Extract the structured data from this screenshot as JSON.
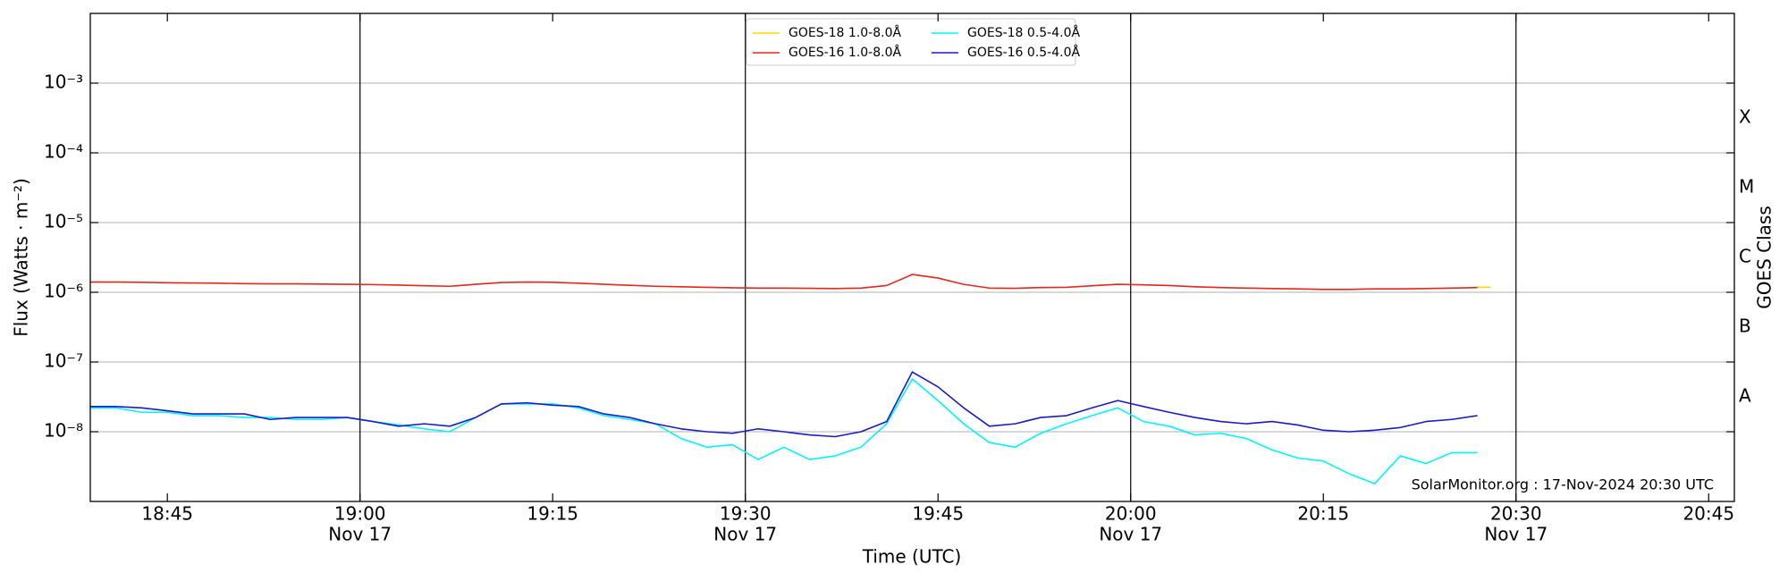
{
  "chart_data": {
    "type": "line",
    "ylabel": "Flux (Watts · m⁻²)",
    "xlabel": "Time (UTC)",
    "y2label": "GOES Class",
    "annotation": "SolarMonitor.org : 17-Nov-2024 20:30 UTC",
    "log_scale": true,
    "grid": true,
    "legend": "upper center",
    "xlim": [
      "18:39",
      "20:47"
    ],
    "xticks": [
      "18:45",
      "19:00",
      "19:15",
      "19:30",
      "19:45",
      "20:00",
      "20:15",
      "20:30",
      "20:45"
    ],
    "xtick_sublabels": [
      null,
      "Nov 17",
      null,
      "Nov 17",
      null,
      "Nov 17",
      null,
      "Nov 17",
      null
    ],
    "ylim": [
      1e-09,
      0.01
    ],
    "yticks": [
      {
        "value": 1e-08,
        "label": "10⁻⁸"
      },
      {
        "value": 1e-07,
        "label": "10⁻⁷"
      },
      {
        "value": 1e-06,
        "label": "10⁻⁶"
      },
      {
        "value": 1e-05,
        "label": "10⁻⁵"
      },
      {
        "value": 0.0001,
        "label": "10⁻⁴"
      },
      {
        "value": 0.001,
        "label": "10⁻³"
      }
    ],
    "y2lim": [
      1e-09,
      0.01
    ],
    "y2ticks": [
      {
        "value": 3.16e-08,
        "label": "A"
      },
      {
        "value": 3.16e-07,
        "label": "B"
      },
      {
        "value": 3.16e-06,
        "label": "C"
      },
      {
        "value": 3.16e-05,
        "label": "M"
      },
      {
        "value": 0.000316,
        "label": "X"
      }
    ],
    "x": [
      "18:39",
      "18:41",
      "18:43",
      "18:45",
      "18:47",
      "18:49",
      "18:51",
      "18:53",
      "18:55",
      "18:57",
      "18:59",
      "19:01",
      "19:03",
      "19:05",
      "19:07",
      "19:09",
      "19:11",
      "19:13",
      "19:15",
      "19:17",
      "19:19",
      "19:21",
      "19:23",
      "19:25",
      "19:27",
      "19:29",
      "19:31",
      "19:33",
      "19:35",
      "19:37",
      "19:39",
      "19:41",
      "19:43",
      "19:45",
      "19:47",
      "19:49",
      "19:51",
      "19:53",
      "19:55",
      "19:57",
      "19:59",
      "20:01",
      "20:03",
      "20:05",
      "20:07",
      "20:09",
      "20:11",
      "20:13",
      "20:15",
      "20:17",
      "20:19",
      "20:21",
      "20:23",
      "20:25",
      "20:27"
    ],
    "series": [
      {
        "name": "GOES-18 1.0-8.0Å",
        "color": "#ffd700",
        "x": [
          "20:27",
          "20:28"
        ],
        "values": [
          1.18e-06,
          1.18e-06
        ]
      },
      {
        "name": "GOES-16 1.0-8.0Å",
        "color": "#e8261a",
        "values": [
          1.4e-06,
          1.4e-06,
          1.39e-06,
          1.37e-06,
          1.36e-06,
          1.35e-06,
          1.33e-06,
          1.32e-06,
          1.32e-06,
          1.31e-06,
          1.3e-06,
          1.29e-06,
          1.27e-06,
          1.24e-06,
          1.22e-06,
          1.3e-06,
          1.38e-06,
          1.4e-06,
          1.39e-06,
          1.35e-06,
          1.3e-06,
          1.26e-06,
          1.22e-06,
          1.2e-06,
          1.18e-06,
          1.16e-06,
          1.15e-06,
          1.15e-06,
          1.14e-06,
          1.13e-06,
          1.15e-06,
          1.25e-06,
          1.8e-06,
          1.6e-06,
          1.3e-06,
          1.15e-06,
          1.14e-06,
          1.17e-06,
          1.18e-06,
          1.24e-06,
          1.3e-06,
          1.28e-06,
          1.25e-06,
          1.2e-06,
          1.17e-06,
          1.15e-06,
          1.13e-06,
          1.12e-06,
          1.1e-06,
          1.1e-06,
          1.12e-06,
          1.12e-06,
          1.13e-06,
          1.15e-06,
          1.17e-06
        ]
      },
      {
        "name": "GOES-18 0.5-4.0Å",
        "color": "#00f5ff",
        "values": [
          2.2e-08,
          2.2e-08,
          1.9e-08,
          1.9e-08,
          1.7e-08,
          1.7e-08,
          1.6e-08,
          1.6e-08,
          1.5e-08,
          1.5e-08,
          1.6e-08,
          1.4e-08,
          1.25e-08,
          1.1e-08,
          1e-08,
          1.6e-08,
          2.5e-08,
          2.5e-08,
          2.5e-08,
          2.2e-08,
          1.7e-08,
          1.5e-08,
          1.3e-08,
          8e-09,
          6e-09,
          6.5e-09,
          4e-09,
          6e-09,
          4e-09,
          4.5e-09,
          6e-09,
          1.3e-08,
          5.7e-08,
          2.8e-08,
          1.3e-08,
          7e-09,
          6e-09,
          9.5e-09,
          1.3e-08,
          1.7e-08,
          2.2e-08,
          1.4e-08,
          1.2e-08,
          9e-09,
          9.5e-09,
          8e-09,
          5.5e-09,
          4.2e-09,
          3.8e-09,
          2.5e-09,
          1.8e-09,
          4.5e-09,
          3.5e-09,
          5e-09,
          5e-09
        ]
      },
      {
        "name": "GOES-16 0.5-4.0Å",
        "color": "#1a1acd",
        "values": [
          2.3e-08,
          2.3e-08,
          2.2e-08,
          2e-08,
          1.8e-08,
          1.8e-08,
          1.8e-08,
          1.5e-08,
          1.6e-08,
          1.6e-08,
          1.6e-08,
          1.4e-08,
          1.2e-08,
          1.3e-08,
          1.2e-08,
          1.6e-08,
          2.5e-08,
          2.6e-08,
          2.4e-08,
          2.3e-08,
          1.8e-08,
          1.6e-08,
          1.3e-08,
          1.1e-08,
          1e-08,
          9.5e-09,
          1.1e-08,
          1e-08,
          9e-09,
          8.5e-09,
          1e-08,
          1.4e-08,
          7.2e-08,
          4.4e-08,
          2.2e-08,
          1.2e-08,
          1.3e-08,
          1.6e-08,
          1.7e-08,
          2.2e-08,
          2.8e-08,
          2.3e-08,
          1.9e-08,
          1.6e-08,
          1.4e-08,
          1.3e-08,
          1.4e-08,
          1.25e-08,
          1.05e-08,
          1e-08,
          1.05e-08,
          1.15e-08,
          1.4e-08,
          1.5e-08,
          1.7e-08
        ]
      }
    ]
  }
}
